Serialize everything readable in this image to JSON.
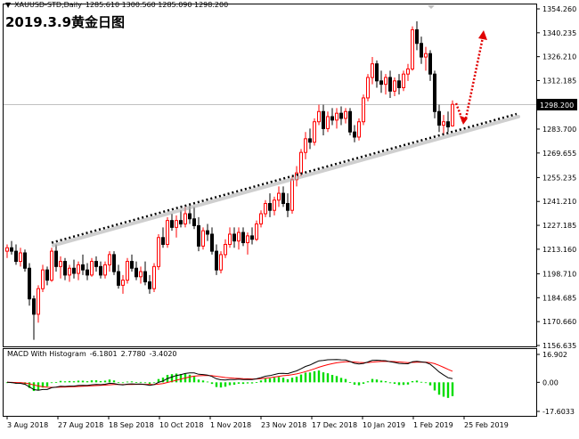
{
  "header": {
    "menu_marker": "▼",
    "symbol": "XAUUSD-STD,Daily",
    "ohlc": "1285.610 1300.560 1285.090 1298.200"
  },
  "annotation": "2019.3.9黄金日图",
  "current_price_label": "1298.200",
  "price_axis_labels": [
    "1354.260",
    "1340.235",
    "1326.210",
    "1312.185",
    "1298.200",
    "1283.700",
    "1269.655",
    "1255.235",
    "1241.210",
    "1227.185",
    "1213.160",
    "1198.710",
    "1184.685",
    "1170.660",
    "1156.635"
  ],
  "date_axis_labels": [
    "3 Aug 2018",
    "27 Aug 2018",
    "18 Sep 2018",
    "10 Oct 2018",
    "1 Nov 2018",
    "23 Nov 2018",
    "17 Dec 2018",
    "10 Jan 2019",
    "1 Feb 2019",
    "25 Feb 2019"
  ],
  "macd": {
    "label": "MACD With Histogram",
    "values": [
      "-6.1801",
      "2.7780",
      "-3.4020"
    ],
    "axis_labels": [
      "16.902",
      "0.00",
      "-17.6033"
    ]
  },
  "colors": {
    "bull_candle": "#ff0000",
    "bear_candle": "#000000",
    "trendline": "#000000",
    "arrow": "#e00000",
    "histogram": "#00dd00",
    "macd_line": "#000000",
    "signal_line": "#ff0000"
  },
  "chart_data": {
    "type": "candlestick",
    "price_axis": {
      "min": 1156.635,
      "max": 1354.26
    },
    "current_price": 1298.2,
    "candles": [
      {
        "o": 1212,
        "h": 1216,
        "l": 1208,
        "c": 1214
      },
      {
        "o": 1214,
        "h": 1218,
        "l": 1210,
        "c": 1212
      },
      {
        "o": 1212,
        "h": 1216,
        "l": 1204,
        "c": 1206
      },
      {
        "o": 1206,
        "h": 1214,
        "l": 1203,
        "c": 1211
      },
      {
        "o": 1211,
        "h": 1213,
        "l": 1200,
        "c": 1202
      },
      {
        "o": 1202,
        "h": 1205,
        "l": 1180,
        "c": 1184
      },
      {
        "o": 1184,
        "h": 1186,
        "l": 1160,
        "c": 1175
      },
      {
        "o": 1175,
        "h": 1192,
        "l": 1170,
        "c": 1190
      },
      {
        "o": 1190,
        "h": 1204,
        "l": 1188,
        "c": 1201
      },
      {
        "o": 1201,
        "h": 1203,
        "l": 1192,
        "c": 1195
      },
      {
        "o": 1195,
        "h": 1214,
        "l": 1194,
        "c": 1212
      },
      {
        "o": 1212,
        "h": 1216,
        "l": 1200,
        "c": 1203
      },
      {
        "o": 1203,
        "h": 1209,
        "l": 1196,
        "c": 1206
      },
      {
        "o": 1206,
        "h": 1208,
        "l": 1195,
        "c": 1198
      },
      {
        "o": 1198,
        "h": 1204,
        "l": 1194,
        "c": 1202
      },
      {
        "o": 1202,
        "h": 1207,
        "l": 1196,
        "c": 1199
      },
      {
        "o": 1199,
        "h": 1206,
        "l": 1195,
        "c": 1204
      },
      {
        "o": 1204,
        "h": 1210,
        "l": 1198,
        "c": 1201
      },
      {
        "o": 1201,
        "h": 1205,
        "l": 1195,
        "c": 1198
      },
      {
        "o": 1198,
        "h": 1208,
        "l": 1197,
        "c": 1206
      },
      {
        "o": 1206,
        "h": 1209,
        "l": 1200,
        "c": 1203
      },
      {
        "o": 1203,
        "h": 1206,
        "l": 1196,
        "c": 1198
      },
      {
        "o": 1198,
        "h": 1206,
        "l": 1196,
        "c": 1204
      },
      {
        "o": 1204,
        "h": 1212,
        "l": 1200,
        "c": 1210
      },
      {
        "o": 1210,
        "h": 1212,
        "l": 1198,
        "c": 1200
      },
      {
        "o": 1200,
        "h": 1204,
        "l": 1190,
        "c": 1192
      },
      {
        "o": 1192,
        "h": 1198,
        "l": 1187,
        "c": 1195
      },
      {
        "o": 1195,
        "h": 1208,
        "l": 1193,
        "c": 1206
      },
      {
        "o": 1206,
        "h": 1210,
        "l": 1200,
        "c": 1202
      },
      {
        "o": 1202,
        "h": 1206,
        "l": 1195,
        "c": 1197
      },
      {
        "o": 1197,
        "h": 1203,
        "l": 1193,
        "c": 1200
      },
      {
        "o": 1200,
        "h": 1206,
        "l": 1192,
        "c": 1194
      },
      {
        "o": 1194,
        "h": 1198,
        "l": 1187,
        "c": 1190
      },
      {
        "o": 1190,
        "h": 1205,
        "l": 1188,
        "c": 1203
      },
      {
        "o": 1203,
        "h": 1222,
        "l": 1201,
        "c": 1220
      },
      {
        "o": 1220,
        "h": 1226,
        "l": 1214,
        "c": 1216
      },
      {
        "o": 1216,
        "h": 1232,
        "l": 1214,
        "c": 1230
      },
      {
        "o": 1230,
        "h": 1234,
        "l": 1224,
        "c": 1226
      },
      {
        "o": 1226,
        "h": 1233,
        "l": 1220,
        "c": 1230
      },
      {
        "o": 1230,
        "h": 1236,
        "l": 1226,
        "c": 1228
      },
      {
        "o": 1228,
        "h": 1238,
        "l": 1226,
        "c": 1234
      },
      {
        "o": 1234,
        "h": 1240,
        "l": 1228,
        "c": 1231
      },
      {
        "o": 1231,
        "h": 1238,
        "l": 1225,
        "c": 1227
      },
      {
        "o": 1227,
        "h": 1232,
        "l": 1212,
        "c": 1215
      },
      {
        "o": 1215,
        "h": 1226,
        "l": 1213,
        "c": 1224
      },
      {
        "o": 1224,
        "h": 1228,
        "l": 1218,
        "c": 1222
      },
      {
        "o": 1222,
        "h": 1226,
        "l": 1210,
        "c": 1212
      },
      {
        "o": 1212,
        "h": 1216,
        "l": 1198,
        "c": 1201
      },
      {
        "o": 1201,
        "h": 1212,
        "l": 1199,
        "c": 1210
      },
      {
        "o": 1210,
        "h": 1219,
        "l": 1208,
        "c": 1216
      },
      {
        "o": 1216,
        "h": 1226,
        "l": 1214,
        "c": 1222
      },
      {
        "o": 1222,
        "h": 1226,
        "l": 1214,
        "c": 1218
      },
      {
        "o": 1218,
        "h": 1226,
        "l": 1213,
        "c": 1223
      },
      {
        "o": 1223,
        "h": 1226,
        "l": 1215,
        "c": 1217
      },
      {
        "o": 1217,
        "h": 1223,
        "l": 1210,
        "c": 1221
      },
      {
        "o": 1221,
        "h": 1226,
        "l": 1216,
        "c": 1219
      },
      {
        "o": 1219,
        "h": 1230,
        "l": 1218,
        "c": 1228
      },
      {
        "o": 1228,
        "h": 1236,
        "l": 1226,
        "c": 1234
      },
      {
        "o": 1234,
        "h": 1242,
        "l": 1232,
        "c": 1240
      },
      {
        "o": 1240,
        "h": 1246,
        "l": 1232,
        "c": 1236
      },
      {
        "o": 1236,
        "h": 1244,
        "l": 1233,
        "c": 1242
      },
      {
        "o": 1242,
        "h": 1250,
        "l": 1238,
        "c": 1246
      },
      {
        "o": 1246,
        "h": 1250,
        "l": 1238,
        "c": 1240
      },
      {
        "o": 1240,
        "h": 1246,
        "l": 1232,
        "c": 1236
      },
      {
        "o": 1236,
        "h": 1256,
        "l": 1234,
        "c": 1254
      },
      {
        "o": 1254,
        "h": 1262,
        "l": 1250,
        "c": 1258
      },
      {
        "o": 1258,
        "h": 1272,
        "l": 1256,
        "c": 1270
      },
      {
        "o": 1270,
        "h": 1282,
        "l": 1266,
        "c": 1278
      },
      {
        "o": 1278,
        "h": 1284,
        "l": 1272,
        "c": 1276
      },
      {
        "o": 1276,
        "h": 1290,
        "l": 1274,
        "c": 1288
      },
      {
        "o": 1288,
        "h": 1298,
        "l": 1286,
        "c": 1294
      },
      {
        "o": 1294,
        "h": 1298,
        "l": 1280,
        "c": 1284
      },
      {
        "o": 1284,
        "h": 1294,
        "l": 1282,
        "c": 1291
      },
      {
        "o": 1291,
        "h": 1296,
        "l": 1286,
        "c": 1289
      },
      {
        "o": 1289,
        "h": 1296,
        "l": 1284,
        "c": 1293
      },
      {
        "o": 1293,
        "h": 1297,
        "l": 1286,
        "c": 1290
      },
      {
        "o": 1290,
        "h": 1296,
        "l": 1287,
        "c": 1294
      },
      {
        "o": 1294,
        "h": 1296,
        "l": 1280,
        "c": 1282
      },
      {
        "o": 1282,
        "h": 1286,
        "l": 1276,
        "c": 1279
      },
      {
        "o": 1279,
        "h": 1290,
        "l": 1277,
        "c": 1288
      },
      {
        "o": 1288,
        "h": 1304,
        "l": 1286,
        "c": 1302
      },
      {
        "o": 1302,
        "h": 1316,
        "l": 1300,
        "c": 1314
      },
      {
        "o": 1314,
        "h": 1326,
        "l": 1310,
        "c": 1322
      },
      {
        "o": 1322,
        "h": 1324,
        "l": 1308,
        "c": 1312
      },
      {
        "o": 1312,
        "h": 1318,
        "l": 1305,
        "c": 1310
      },
      {
        "o": 1310,
        "h": 1316,
        "l": 1304,
        "c": 1314
      },
      {
        "o": 1314,
        "h": 1318,
        "l": 1302,
        "c": 1306
      },
      {
        "o": 1306,
        "h": 1314,
        "l": 1303,
        "c": 1312
      },
      {
        "o": 1312,
        "h": 1316,
        "l": 1304,
        "c": 1308
      },
      {
        "o": 1308,
        "h": 1318,
        "l": 1306,
        "c": 1316
      },
      {
        "o": 1316,
        "h": 1322,
        "l": 1312,
        "c": 1319
      },
      {
        "o": 1319,
        "h": 1344,
        "l": 1318,
        "c": 1342
      },
      {
        "o": 1342,
        "h": 1347,
        "l": 1330,
        "c": 1334
      },
      {
        "o": 1334,
        "h": 1338,
        "l": 1322,
        "c": 1326
      },
      {
        "o": 1326,
        "h": 1332,
        "l": 1318,
        "c": 1328
      },
      {
        "o": 1328,
        "h": 1330,
        "l": 1312,
        "c": 1316
      },
      {
        "o": 1316,
        "h": 1318,
        "l": 1290,
        "c": 1294
      },
      {
        "o": 1294,
        "h": 1298,
        "l": 1282,
        "c": 1286
      },
      {
        "o": 1286,
        "h": 1292,
        "l": 1280,
        "c": 1288
      },
      {
        "o": 1288,
        "h": 1294,
        "l": 1282,
        "c": 1285
      },
      {
        "o": 1285.61,
        "h": 1300.56,
        "l": 1285.09,
        "c": 1298.2
      }
    ],
    "trendline": {
      "from_bar": 10,
      "from_price": 1217,
      "to_bar": 114,
      "to_price": 1292
    },
    "projection": [
      "1300 → 1287",
      "1287 → 1344"
    ],
    "x_labels": [
      "3 Aug 2018",
      "27 Aug 2018",
      "18 Sep 2018",
      "10 Oct 2018",
      "1 Nov 2018",
      "23 Nov 2018",
      "17 Dec 2018",
      "10 Jan 2019",
      "1 Feb 2019",
      "25 Feb 2019"
    ],
    "macd_panel": {
      "range": [
        -17.6033,
        16.902
      ],
      "macd": -6.1801,
      "signal": 2.778,
      "histogram": -3.402
    }
  }
}
